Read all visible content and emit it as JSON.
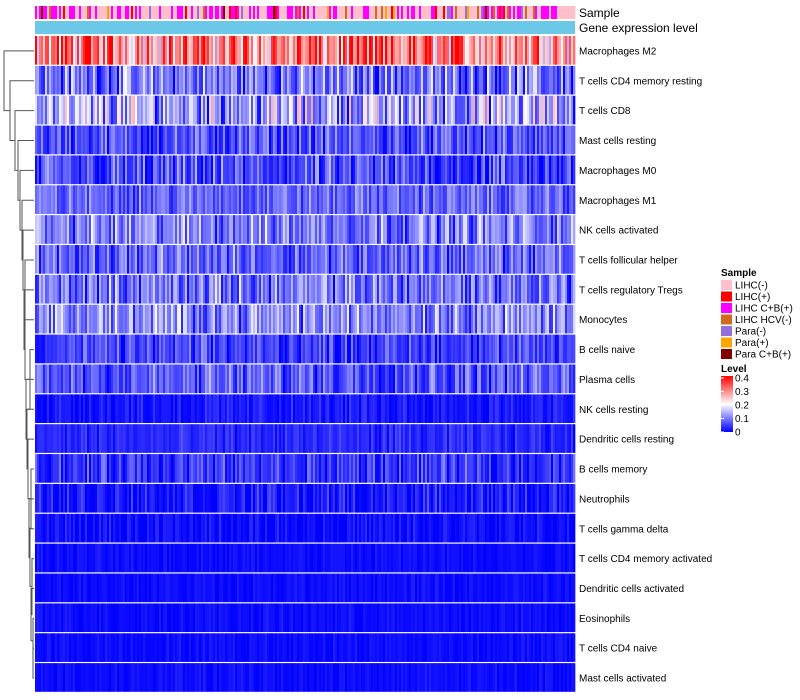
{
  "chart_data": {
    "type": "heatmap",
    "annotations": [
      "Sample",
      "Gene expression level"
    ],
    "rows": [
      "Macrophages M2",
      "T cells CD4 memory resting",
      "T cells CD8",
      "Mast cells resting",
      "Macrophages M0",
      "Macrophages M1",
      "NK cells activated",
      "T cells follicular helper",
      "T cells regulatory  Tregs",
      "Monocytes",
      "B cells naive",
      "Plasma cells",
      "NK cells resting",
      "Dendritic cells resting",
      "B cells memory",
      "Neutrophils",
      "T cells gamma delta",
      "T cells CD4 memory activated",
      "Dendritic cells activated",
      "Eosinophils",
      "T cells CD4 naive",
      "Mast cells activated"
    ],
    "row_mean_level": [
      0.3,
      0.09,
      0.13,
      0.06,
      0.05,
      0.08,
      0.1,
      0.08,
      0.09,
      0.11,
      0.05,
      0.07,
      0.02,
      0.03,
      0.04,
      0.02,
      0.01,
      0.01,
      0.01,
      0.01,
      0.01,
      0.01
    ],
    "row_variability": [
      0.1,
      0.07,
      0.09,
      0.05,
      0.06,
      0.04,
      0.06,
      0.05,
      0.06,
      0.06,
      0.04,
      0.05,
      0.02,
      0.02,
      0.04,
      0.03,
      0.02,
      0.01,
      0.01,
      0.01,
      0.01,
      0.01
    ],
    "n_samples": 270,
    "sample_legend": {
      "title": "Sample",
      "items": [
        {
          "label": "LIHC(-)",
          "color": "#FFC0CB"
        },
        {
          "label": "LIHC(+)",
          "color": "#FF0000"
        },
        {
          "label": "LIHC C+B(+)",
          "color": "#FF00FF"
        },
        {
          "label": "LIHC HCV(-)",
          "color": "#D2691E"
        },
        {
          "label": "Para(-)",
          "color": "#9370DB"
        },
        {
          "label": "Para(+)",
          "color": "#FFA500"
        },
        {
          "label": "Para C+B(+)",
          "color": "#800000"
        }
      ]
    },
    "sample_mix": [
      0.55,
      0.05,
      0.28,
      0.05,
      0.03,
      0.03,
      0.01
    ],
    "gene_expression_color": "#6BC8E8",
    "level_legend": {
      "title": "Level",
      "ticks": [
        "0.4",
        "0.3",
        "0.2",
        "0.1",
        "0"
      ],
      "range": [
        0,
        0.4
      ]
    },
    "color_scale": {
      "low": "#0000FF",
      "mid": "#FFFFFF",
      "high": "#FF0000",
      "midpoint": 0.2
    }
  }
}
